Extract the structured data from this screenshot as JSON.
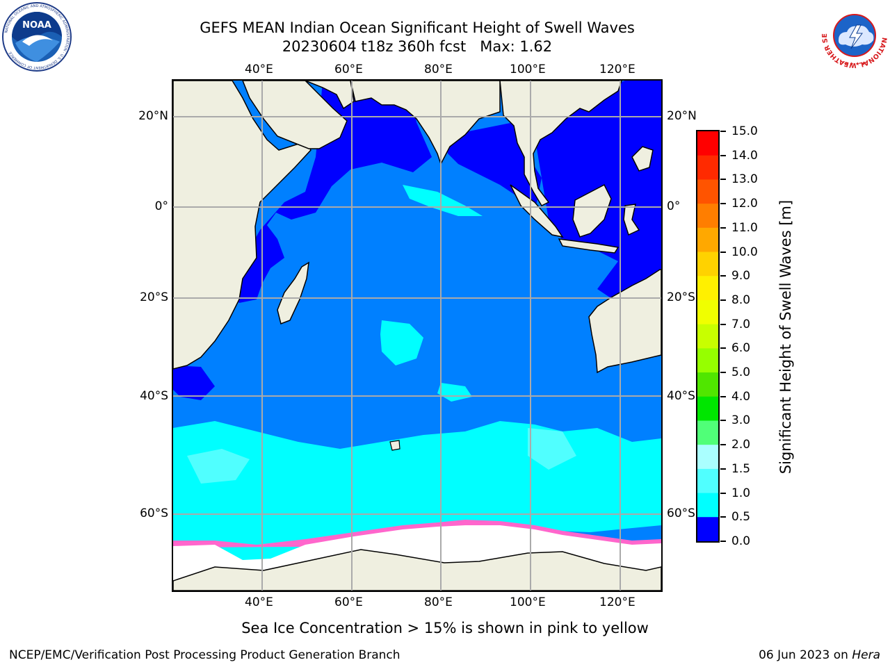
{
  "title": {
    "line1": "GEFS MEAN Indian Ocean Significant Height of Swell Waves",
    "line2": "20230604 t18z 360h fcst   Max: 1.62"
  },
  "map": {
    "lon_ticks_top": [
      "40°E",
      "60°E",
      "80°E",
      "100°E",
      "120°E"
    ],
    "lon_ticks_bottom": [
      "40°E",
      "60°E",
      "80°E",
      "100°E",
      "120°E"
    ],
    "lat_ticks_left": [
      "20°N",
      "0°",
      "20°S",
      "40°S",
      "60°S"
    ],
    "lat_ticks_right": [
      "20°N",
      "0°",
      "20°S",
      "40°S",
      "60°S"
    ],
    "land_color": "#efefe0",
    "sea_ice_color": "#ffffff"
  },
  "colorbar": {
    "label": "Significant Height of Swell Waves [m]",
    "ticks": [
      "15.0",
      "14.0",
      "13.0",
      "12.0",
      "11.0",
      "10.0",
      "9.0",
      "8.0",
      "7.0",
      "6.0",
      "5.0",
      "4.0",
      "3.0",
      "2.0",
      "1.5",
      "1.0",
      "0.5",
      "0.0"
    ],
    "colors": [
      "#ff0000",
      "#ff2a00",
      "#ff5400",
      "#ff7e00",
      "#ffa800",
      "#ffd200",
      "#fff000",
      "#f0ff00",
      "#c8ff00",
      "#96ff00",
      "#50e600",
      "#00e600",
      "#50ff78",
      "#aaffff",
      "#50ffff",
      "#00ffff",
      "#0080ff",
      "#0000ff"
    ]
  },
  "caption": "Sea Ice Concentration > 15% is shown in pink to yellow",
  "footer": {
    "left": "NCEP/EMC/Verification Post Processing Product Generation Branch",
    "right_date": "06 Jun 2023 on ",
    "right_host": "Hera"
  },
  "logos": {
    "left_text": "NOAA",
    "left_ring": "NATIONAL OCEANIC AND ATMOSPHERIC ADMINISTRATION · U.S. DEPARTMENT OF COMMERCE",
    "right_ring": "NATIONAL WEATHER SERVICE"
  }
}
